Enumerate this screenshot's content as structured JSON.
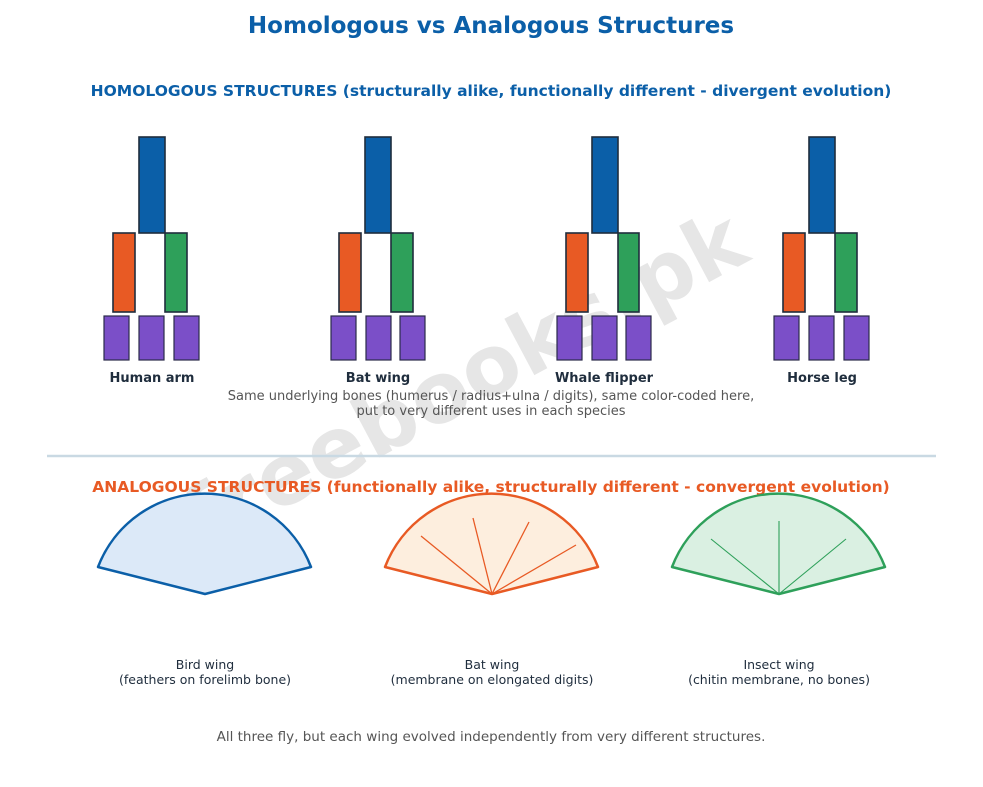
{
  "title": "Homologous vs Analogous Structures",
  "homologous": {
    "heading": "HOMOLOGOUS STRUCTURES (structurally alike, functionally different - divergent evolution)",
    "bone_colors": {
      "humerus": "#0b5fa8",
      "radius": "#e85a24",
      "ulna": "#2ea05a",
      "digits": "#7b4fc8"
    },
    "limbs": [
      {
        "label": "Human arm"
      },
      {
        "label": "Bat wing"
      },
      {
        "label": "Whale flipper"
      },
      {
        "label": "Horse leg"
      }
    ],
    "note_lines": [
      "Same underlying bones (humerus / radius+ulna / digits), same color-coded here,",
      "put to very different uses in each species"
    ]
  },
  "analogous": {
    "heading": "ANALOGOUS STRUCTURES (functionally alike, structurally different - convergent evolution)",
    "wings": [
      {
        "name": "Bird wing",
        "detail": "(feathers on forelimb bone)",
        "stroke": "#0b5fa8",
        "fill": "#dce9f8"
      },
      {
        "name": "Bat wing",
        "detail": "(membrane on elongated digits)",
        "stroke": "#e85a24",
        "fill": "#fdeede"
      },
      {
        "name": "Insect wing",
        "detail": "(chitin membrane, no bones)",
        "stroke": "#2ea05a",
        "fill": "#daf0e2"
      }
    ],
    "note": "All three fly, but each wing evolved independently from very different structures."
  },
  "watermark": "freebooks.pk",
  "colors": {
    "title": "#0b5fa8",
    "homologous_heading": "#0b5fa8",
    "analogous_heading": "#e85a24",
    "label": "#1f2d3d",
    "note": "#555555",
    "divider": "#c9d9e3",
    "watermark": "#e6e6e6"
  }
}
